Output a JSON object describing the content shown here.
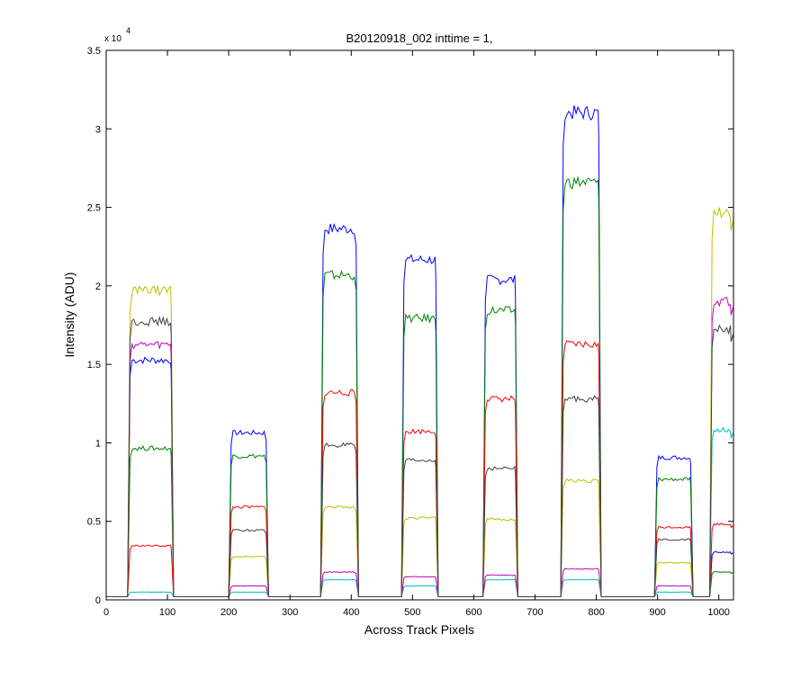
{
  "chart_data": {
    "type": "line",
    "title": "B20120918_002 inttime = 1,",
    "xlabel": "Across Track Pixels",
    "ylabel": "Intensity (ADU)",
    "y_exponent_label": "x 10",
    "y_exponent_power": "4",
    "xlim": [
      0,
      1024
    ],
    "ylim": [
      0,
      35000
    ],
    "x_ticks": [
      0,
      100,
      200,
      300,
      400,
      500,
      600,
      700,
      800,
      900,
      1000
    ],
    "y_ticks": [
      0,
      5000,
      10000,
      15000,
      20000,
      25000,
      30000,
      35000
    ],
    "y_tick_labels": [
      "0",
      "0.5",
      "1",
      "1.5",
      "2",
      "2.5",
      "3",
      "3.5"
    ],
    "grid": false,
    "baseline": 200,
    "segments": [
      {
        "start": 35,
        "end": 110
      },
      {
        "start": 200,
        "end": 265
      },
      {
        "start": 350,
        "end": 412
      },
      {
        "start": 482,
        "end": 542
      },
      {
        "start": 615,
        "end": 672
      },
      {
        "start": 742,
        "end": 808
      },
      {
        "start": 895,
        "end": 958
      },
      {
        "start": 985,
        "end": 1024
      }
    ],
    "series": [
      {
        "color": "#0000ff",
        "values": [
          15500,
          10800,
          24000,
          22000,
          20700,
          31500,
          9200,
          3100
        ]
      },
      {
        "color": "#008000",
        "values": [
          9800,
          9300,
          21000,
          18200,
          18700,
          27000,
          7800,
          1800
        ]
      },
      {
        "color": "#ff0000",
        "values": [
          3500,
          6000,
          13400,
          10900,
          13000,
          16500,
          4700,
          4900
        ]
      },
      {
        "color": "#00bfbf",
        "values": [
          500,
          500,
          1300,
          900,
          1300,
          1300,
          500,
          11000
        ]
      },
      {
        "color": "#bf00bf",
        "values": [
          16500,
          900,
          1800,
          1500,
          1600,
          2000,
          900,
          19300
        ]
      },
      {
        "color": "#bfbf00",
        "values": [
          20000,
          2800,
          6000,
          5300,
          5200,
          7700,
          2400,
          25000
        ]
      },
      {
        "color": "#404040",
        "values": [
          18000,
          4500,
          10000,
          9000,
          8500,
          13000,
          3900,
          17500
        ]
      }
    ]
  }
}
